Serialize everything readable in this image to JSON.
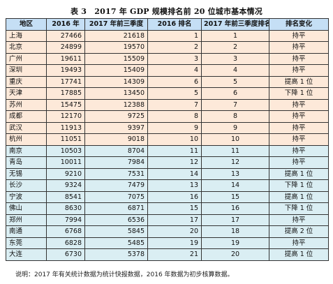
{
  "title": "表 3　2017 年 GDP 规模排名前 20 位城市基本情况",
  "table": {
    "headers": [
      "地区",
      "2016 年",
      "2017 年前三季度",
      "2016 排名",
      "2017 年前三季度排名",
      "排名变化"
    ],
    "rows": [
      {
        "city": "上海",
        "gdp2016": "27466",
        "gdp2017q3": "21618",
        "rank2016": "1",
        "rank2017q3": "1",
        "change": "持平",
        "group": "A"
      },
      {
        "city": "北京",
        "gdp2016": "24899",
        "gdp2017q3": "19570",
        "rank2016": "2",
        "rank2017q3": "2",
        "change": "持平",
        "group": "A"
      },
      {
        "city": "广州",
        "gdp2016": "19611",
        "gdp2017q3": "15509",
        "rank2016": "3",
        "rank2017q3": "3",
        "change": "持平",
        "group": "A"
      },
      {
        "city": "深圳",
        "gdp2016": "19493",
        "gdp2017q3": "15409",
        "rank2016": "4",
        "rank2017q3": "4",
        "change": "持平",
        "group": "A"
      },
      {
        "city": "重庆",
        "gdp2016": "17741",
        "gdp2017q3": "14309",
        "rank2016": "6",
        "rank2017q3": "5",
        "change": "提高 1 位",
        "group": "A"
      },
      {
        "city": "天津",
        "gdp2016": "17885",
        "gdp2017q3": "13450",
        "rank2016": "5",
        "rank2017q3": "6",
        "change": "下降 1 位",
        "group": "A"
      },
      {
        "city": "苏州",
        "gdp2016": "15475",
        "gdp2017q3": "12388",
        "rank2016": "7",
        "rank2017q3": "7",
        "change": "持平",
        "group": "A"
      },
      {
        "city": "成都",
        "gdp2016": "12170",
        "gdp2017q3": "9725",
        "rank2016": "8",
        "rank2017q3": "8",
        "change": "持平",
        "group": "A"
      },
      {
        "city": "武汉",
        "gdp2016": "11913",
        "gdp2017q3": "9397",
        "rank2016": "9",
        "rank2017q3": "9",
        "change": "持平",
        "group": "A"
      },
      {
        "city": "杭州",
        "gdp2016": "11051",
        "gdp2017q3": "9018",
        "rank2016": "10",
        "rank2017q3": "10",
        "change": "持平",
        "group": "A"
      },
      {
        "city": "南京",
        "gdp2016": "10503",
        "gdp2017q3": "8704",
        "rank2016": "11",
        "rank2017q3": "11",
        "change": "持平",
        "group": "B"
      },
      {
        "city": "青岛",
        "gdp2016": "10011",
        "gdp2017q3": "7984",
        "rank2016": "12",
        "rank2017q3": "12",
        "change": "持平",
        "group": "B"
      },
      {
        "city": "无锡",
        "gdp2016": "9210",
        "gdp2017q3": "7531",
        "rank2016": "14",
        "rank2017q3": "13",
        "change": "提高 1 位",
        "group": "B"
      },
      {
        "city": "长沙",
        "gdp2016": "9324",
        "gdp2017q3": "7479",
        "rank2016": "13",
        "rank2017q3": "14",
        "change": "下降 1 位",
        "group": "B"
      },
      {
        "city": "宁波",
        "gdp2016": "8541",
        "gdp2017q3": "7075",
        "rank2016": "16",
        "rank2017q3": "15",
        "change": "提高 1 位",
        "group": "B"
      },
      {
        "city": "佛山",
        "gdp2016": "8630",
        "gdp2017q3": "6871",
        "rank2016": "15",
        "rank2017q3": "16",
        "change": "下降 1 位",
        "group": "B"
      },
      {
        "city": "郑州",
        "gdp2016": "7994",
        "gdp2017q3": "6536",
        "rank2016": "17",
        "rank2017q3": "17",
        "change": "持平",
        "group": "B"
      },
      {
        "city": "南通",
        "gdp2016": "6768",
        "gdp2017q3": "5845",
        "rank2016": "20",
        "rank2017q3": "18",
        "change": "提高 2 位",
        "group": "B"
      },
      {
        "city": "东莞",
        "gdp2016": "6828",
        "gdp2017q3": "5485",
        "rank2016": "19",
        "rank2017q3": "19",
        "change": "持平",
        "group": "B"
      },
      {
        "city": "大连",
        "gdp2016": "6730",
        "gdp2017q3": "5378",
        "rank2016": "21",
        "rank2017q3": "20",
        "change": "提高 1 位",
        "group": "B"
      }
    ]
  },
  "note": "说明：2017 年有关统计数据为统计快报数据，2016 年数据为初步核算数据。",
  "colors": {
    "header_bg": "#c5dff5",
    "group_a_bg": "#fde9d9",
    "group_b_bg": "#daeef3",
    "border": "#333333"
  }
}
